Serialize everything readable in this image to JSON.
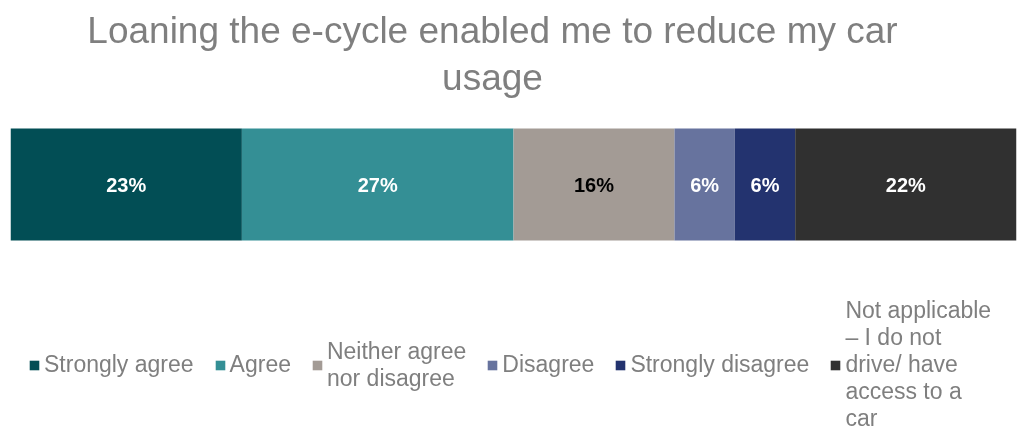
{
  "chart_data": {
    "type": "bar",
    "orientation": "horizontal",
    "stacked": true,
    "title": "Loaning the e-cycle enabled me to reduce my car usage",
    "categories": [
      null
    ],
    "series": [
      {
        "name": "Strongly agree",
        "color": "#024e55",
        "values": [
          23
        ],
        "value_labels": [
          "23%"
        ]
      },
      {
        "name": "Agree",
        "color": "#348f95",
        "values": [
          27
        ],
        "value_labels": [
          "27%"
        ]
      },
      {
        "name": "Neither agree nor disagree",
        "color": "#a39b95",
        "values": [
          16
        ],
        "value_labels": [
          "16%"
        ]
      },
      {
        "name": "Disagree",
        "color": "#67739e",
        "values": [
          6
        ],
        "value_labels": [
          "6%"
        ]
      },
      {
        "name": "Strongly disagree",
        "color": "#23336f",
        "values": [
          6
        ],
        "value_labels": [
          "6%"
        ]
      },
      {
        "name": "Not applicable – I do not drive/ have access to a car",
        "color": "#303030",
        "values": [
          22
        ],
        "value_labels": [
          "22%"
        ]
      }
    ],
    "xlim": [
      0,
      100
    ],
    "tick_labels": false,
    "legend": "bottom"
  }
}
